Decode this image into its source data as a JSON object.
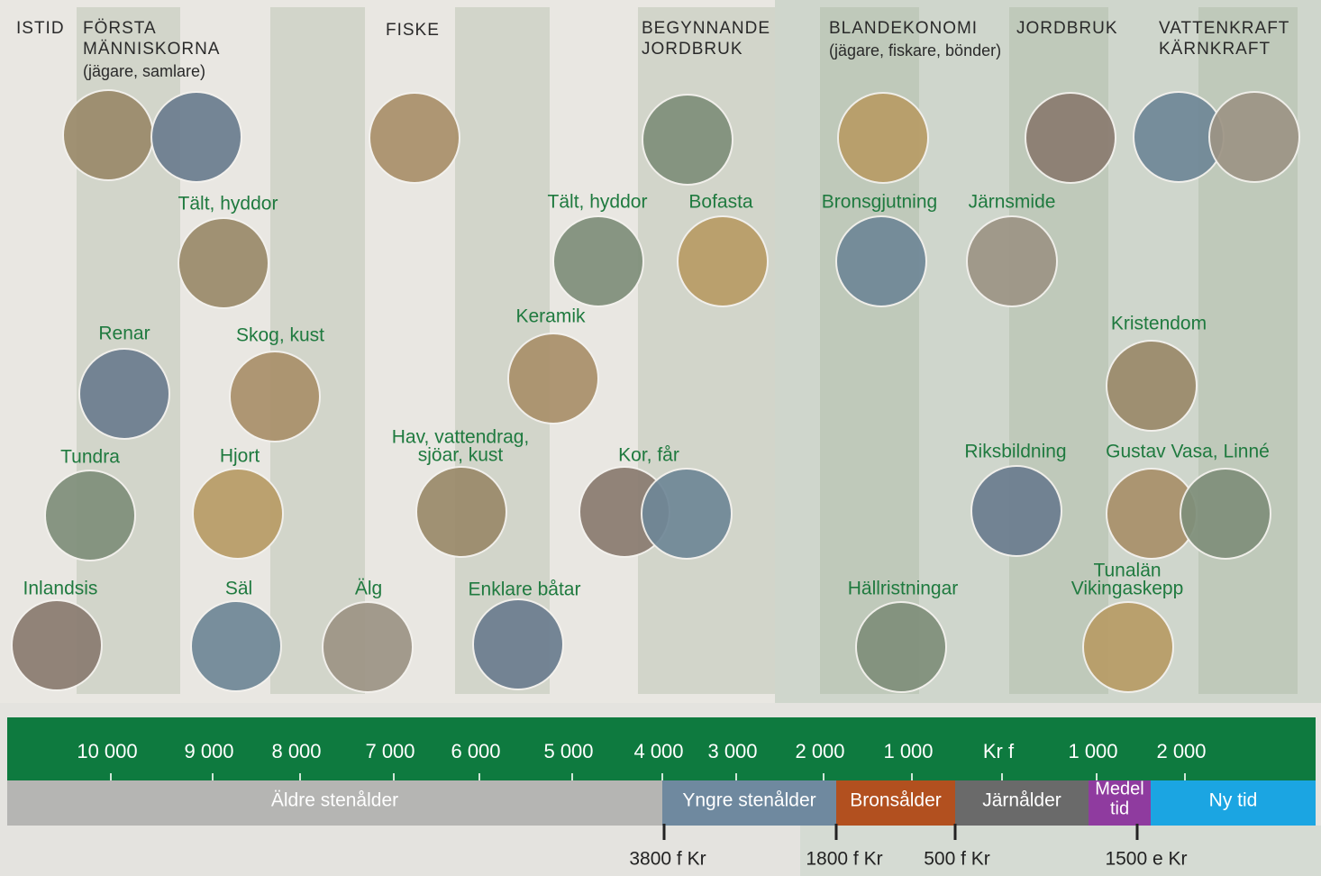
{
  "eras": [
    {
      "lines": [
        "ISTID"
      ]
    },
    {
      "lines": [
        "FÖRSTA",
        "MÄNNISKORNA",
        "(jägare, samlare)"
      ]
    },
    {
      "lines": [
        "FISKE"
      ]
    },
    {
      "lines": [
        "BEGYNNANDE",
        "JORDBRUK"
      ]
    },
    {
      "lines": [
        "BLANDEKONOMI",
        "(jägare, fiskare, bönder)"
      ]
    },
    {
      "lines": [
        "JORDBRUK"
      ]
    },
    {
      "lines": [
        "VATTENKRAFT",
        "KÄRNKRAFT"
      ]
    }
  ],
  "topics": [
    {
      "lines": [
        "Tält, hyddor"
      ]
    },
    {
      "lines": [
        "Renar"
      ]
    },
    {
      "lines": [
        "Skog, kust"
      ]
    },
    {
      "lines": [
        "Tundra"
      ]
    },
    {
      "lines": [
        "Hjort"
      ]
    },
    {
      "lines": [
        "Inlandsis"
      ]
    },
    {
      "lines": [
        "Säl"
      ]
    },
    {
      "lines": [
        "Älg"
      ]
    },
    {
      "lines": [
        "Hav, vattendrag,",
        "sjöar, kust"
      ]
    },
    {
      "lines": [
        "Enklare båtar"
      ]
    },
    {
      "lines": [
        "Keramik"
      ]
    },
    {
      "lines": [
        "Tält, hyddor"
      ]
    },
    {
      "lines": [
        "Bofasta"
      ]
    },
    {
      "lines": [
        "Kor, får"
      ]
    },
    {
      "lines": [
        "Bronsgjutning"
      ]
    },
    {
      "lines": [
        "Järnsmide"
      ]
    },
    {
      "lines": [
        "Kristendom"
      ]
    },
    {
      "lines": [
        "Riksbildning"
      ]
    },
    {
      "lines": [
        "Gustav Vasa, Linné"
      ]
    },
    {
      "lines": [
        "Hällristningar"
      ]
    },
    {
      "lines": [
        "Tunalän",
        "Vikingaskepp"
      ]
    }
  ],
  "timeline": {
    "labels": [
      "10 000",
      "9 000",
      "8 000",
      "7 000",
      "6 000",
      "5 000",
      "4 000",
      "3 000",
      "2 000",
      "1 000",
      "Kr f",
      "1 000",
      "2 000"
    ],
    "periods": [
      {
        "lines": [
          "Äldre stenålder"
        ],
        "color": "#b5b5b3"
      },
      {
        "lines": [
          "Yngre stenålder"
        ],
        "color": "#6f899f"
      },
      {
        "lines": [
          "Bronsålder"
        ],
        "color": "#b2501f"
      },
      {
        "lines": [
          "Järnålder"
        ],
        "color": "#6a6a6a"
      },
      {
        "lines": [
          "Medel",
          "tid"
        ],
        "color": "#8f3b9f"
      },
      {
        "lines": [
          "Ny tid"
        ],
        "color": "#1ba5e2"
      }
    ],
    "markers": [
      "3800 f Kr",
      "1800 f Kr",
      "500 f Kr",
      "1500 e Kr"
    ]
  }
}
